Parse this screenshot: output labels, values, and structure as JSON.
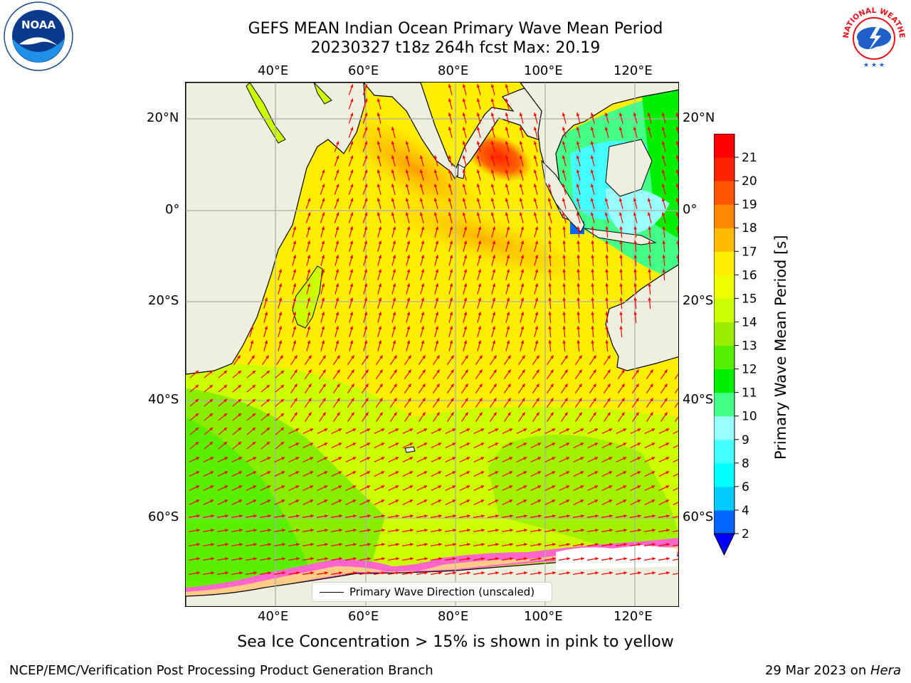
{
  "header": {
    "title_line1": "GEFS MEAN Indian Ocean Primary Wave Mean Period",
    "title_line2": "20230327 t18z 264h fcst   Max: 20.19"
  },
  "logos": {
    "left": "NOAA",
    "right": "NATIONAL WEATHER SERVICE"
  },
  "map": {
    "lon_ticks": [
      "40°E",
      "60°E",
      "80°E",
      "100°E",
      "120°E"
    ],
    "lat_ticks": [
      "20°N",
      "0°",
      "20°S",
      "40°S",
      "60°S"
    ],
    "lon_range": [
      20,
      130
    ],
    "lat_range": [
      -77,
      28
    ],
    "legend_label": "Primary Wave Direction (unscaled)",
    "arrow_color": "#ff0000",
    "land_color": "#efefdf"
  },
  "colorbar": {
    "label": "Primary Wave Mean Period [s]",
    "ticks": [
      "2",
      "4",
      "6",
      "8",
      "9",
      "10",
      "11",
      "12",
      "13",
      "14",
      "15",
      "16",
      "17",
      "18",
      "19",
      "20",
      "21"
    ],
    "colors": [
      "#0066ff",
      "#00ccff",
      "#00ffff",
      "#44ffff",
      "#99ffff",
      "#44ff88",
      "#00ee00",
      "#55ee00",
      "#99ee00",
      "#ccff00",
      "#eeff00",
      "#ffee00",
      "#ffbb00",
      "#ff8800",
      "#ff5500",
      "#ff2200",
      "#ff0000"
    ],
    "under_color": "#0000ff"
  },
  "caption": "Sea Ice Concentration > 15% is shown in pink to yellow",
  "footer": {
    "left": "NCEP/EMC/Verification Post Processing Product Generation Branch",
    "right_prefix": "29 Mar 2023 on ",
    "right_host": "Hera"
  }
}
